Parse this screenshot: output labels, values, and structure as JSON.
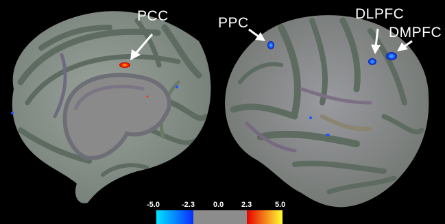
{
  "labels": {
    "pcc": "PCC",
    "ppc": "PPC",
    "dlpfc": "DLPFC",
    "dmpfc": "DMPFC"
  },
  "colorbar": {
    "ticks": [
      "-5.0",
      "-2.3",
      "0.0",
      "2.3",
      "5.0"
    ],
    "values": [
      -5.0,
      -2.3,
      0.0,
      2.3,
      5.0
    ],
    "colors": {
      "neg_low": "#00e5ff",
      "neg_high": "#0a2cff",
      "neutral": "#8c8c8c",
      "pos_low": "#e60000",
      "pos_high": "#ffff33"
    }
  },
  "colors": {
    "background": "#000000",
    "cortex_gyri": "#8e9a8e",
    "cortex_sulci": "#5f6d62",
    "activation_pos": "#ff3300",
    "activation_neg": "#1f55ff"
  }
}
